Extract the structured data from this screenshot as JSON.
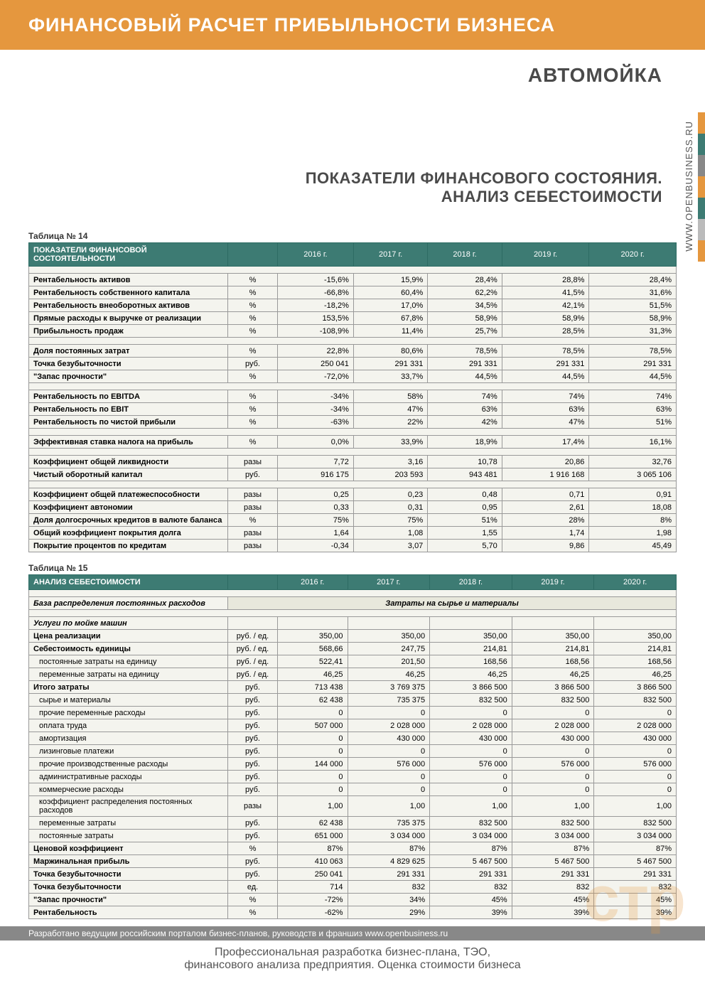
{
  "header": {
    "title": "ФИНАНСОВЫЙ РАСЧЕТ ПРИБЫЛЬНОСТИ БИЗНЕСА",
    "subtitle": "АВТОМОЙКА",
    "section_line1": "ПОКАЗАТЕЛИ ФИНАНСОВОГО СОСТОЯНИЯ.",
    "section_line2": "АНАЛИЗ СЕБЕСТОИМОСТИ",
    "url": "WWW.OPENBUSINESS.RU",
    "side_colors": [
      "#e5973e",
      "#3d7b73",
      "#888",
      "#e5973e",
      "#3d7b73",
      "#bbb",
      "#e5973e"
    ]
  },
  "table14": {
    "label": "Таблица № 14",
    "title": "ПОКАЗАТЕЛИ ФИНАНСОВОЙ СОСТОЯТЕЛЬНОСТИ",
    "years": [
      "2016 г.",
      "2017 г.",
      "2018 г.",
      "2019 г.",
      "2020 г."
    ],
    "groups": [
      [
        {
          "l": "Рентабельность активов",
          "u": "%",
          "v": [
            "-15,6%",
            "15,9%",
            "28,4%",
            "28,8%",
            "28,4%"
          ]
        },
        {
          "l": "Рентабельность собственного капитала",
          "u": "%",
          "v": [
            "-66,8%",
            "60,4%",
            "62,2%",
            "41,5%",
            "31,6%"
          ]
        },
        {
          "l": "Рентабельность внеоборотных активов",
          "u": "%",
          "v": [
            "-18,2%",
            "17,0%",
            "34,5%",
            "42,1%",
            "51,5%"
          ]
        },
        {
          "l": "Прямые расходы к выручке от реализации",
          "u": "%",
          "v": [
            "153,5%",
            "67,8%",
            "58,9%",
            "58,9%",
            "58,9%"
          ]
        },
        {
          "l": "Прибыльность продаж",
          "u": "%",
          "v": [
            "-108,9%",
            "11,4%",
            "25,7%",
            "28,5%",
            "31,3%"
          ]
        }
      ],
      [
        {
          "l": "Доля постоянных  затрат",
          "u": "%",
          "v": [
            "22,8%",
            "80,6%",
            "78,5%",
            "78,5%",
            "78,5%"
          ]
        },
        {
          "l": "Точка безубыточности",
          "u": "руб.",
          "v": [
            "250 041",
            "291 331",
            "291 331",
            "291 331",
            "291 331"
          ]
        },
        {
          "l": "\"Запас прочности\"",
          "u": "%",
          "v": [
            "-72,0%",
            "33,7%",
            "44,5%",
            "44,5%",
            "44,5%"
          ]
        }
      ],
      [
        {
          "l": "Рентабельность по EBITDA",
          "u": "%",
          "v": [
            "-34%",
            "58%",
            "74%",
            "74%",
            "74%"
          ]
        },
        {
          "l": "Рентабельность по EBIT",
          "u": "%",
          "v": [
            "-34%",
            "47%",
            "63%",
            "63%",
            "63%"
          ]
        },
        {
          "l": "Рентабельность по чистой прибыли",
          "u": "%",
          "v": [
            "-63%",
            "22%",
            "42%",
            "47%",
            "51%"
          ]
        }
      ],
      [
        {
          "l": "Эффективная ставка налога на прибыль",
          "u": "%",
          "v": [
            "0,0%",
            "33,9%",
            "18,9%",
            "17,4%",
            "16,1%"
          ]
        }
      ],
      [
        {
          "l": "Коэффициент общей ликвидности",
          "u": "разы",
          "v": [
            "7,72",
            "3,16",
            "10,78",
            "20,86",
            "32,76"
          ]
        },
        {
          "l": "Чистый оборотный капитал",
          "u": "руб.",
          "v": [
            "916 175",
            "203 593",
            "943 481",
            "1 916 168",
            "3 065 106"
          ]
        }
      ],
      [
        {
          "l": "Коэффициент общей платежеспособности",
          "u": "разы",
          "v": [
            "0,25",
            "0,23",
            "0,48",
            "0,71",
            "0,91"
          ]
        },
        {
          "l": "Коэффициент автономии",
          "u": "разы",
          "v": [
            "0,33",
            "0,31",
            "0,95",
            "2,61",
            "18,08"
          ]
        },
        {
          "l": "Доля долгосрочных кредитов в валюте баланса",
          "u": "%",
          "v": [
            "75%",
            "75%",
            "51%",
            "28%",
            "8%"
          ]
        },
        {
          "l": "Общий коэффициент покрытия долга",
          "u": "разы",
          "v": [
            "1,64",
            "1,08",
            "1,55",
            "1,74",
            "1,98"
          ]
        },
        {
          "l": "Покрытие процентов по кредитам",
          "u": "разы",
          "v": [
            "-0,34",
            "3,07",
            "5,70",
            "9,86",
            "45,49"
          ]
        }
      ]
    ]
  },
  "table15": {
    "label": "Таблица № 15",
    "title": "АНАЛИЗ СЕБЕСТОИМОСТИ",
    "years": [
      "2016 г.",
      "2017 г.",
      "2018 г.",
      "2019 г.",
      "2020 г."
    ],
    "base_label": "База распределения постоянных расходов",
    "base_value": "Затраты на сырье и материалы",
    "section": "Услуги по мойке машин",
    "rows": [
      {
        "l": "Цена реализации",
        "u": "руб. / ед.",
        "v": [
          "350,00",
          "350,00",
          "350,00",
          "350,00",
          "350,00"
        ],
        "cls": "label"
      },
      {
        "l": "Себестоимость единицы",
        "u": "руб. / ед.",
        "v": [
          "568,66",
          "247,75",
          "214,81",
          "214,81",
          "214,81"
        ],
        "cls": "label"
      },
      {
        "l": "постоянные затраты на единицу",
        "u": "руб. / ед.",
        "v": [
          "522,41",
          "201,50",
          "168,56",
          "168,56",
          "168,56"
        ],
        "cls": "label-sub"
      },
      {
        "l": "переменные затраты на единицу",
        "u": "руб. / ед.",
        "v": [
          "46,25",
          "46,25",
          "46,25",
          "46,25",
          "46,25"
        ],
        "cls": "label-sub"
      },
      {
        "l": "Итого затраты",
        "u": "руб.",
        "v": [
          "713 438",
          "3 769 375",
          "3 866 500",
          "3 866 500",
          "3 866 500"
        ],
        "cls": "label"
      },
      {
        "l": "сырье и материалы",
        "u": "руб.",
        "v": [
          "62 438",
          "735 375",
          "832 500",
          "832 500",
          "832 500"
        ],
        "cls": "label-sub"
      },
      {
        "l": "прочие переменные расходы",
        "u": "руб.",
        "v": [
          "0",
          "0",
          "0",
          "0",
          "0"
        ],
        "cls": "label-sub"
      },
      {
        "l": "оплата труда",
        "u": "руб.",
        "v": [
          "507 000",
          "2 028 000",
          "2 028 000",
          "2 028 000",
          "2 028 000"
        ],
        "cls": "label-sub"
      },
      {
        "l": "амортизация",
        "u": "руб.",
        "v": [
          "0",
          "430 000",
          "430 000",
          "430 000",
          "430 000"
        ],
        "cls": "label-sub"
      },
      {
        "l": "лизинговые платежи",
        "u": "руб.",
        "v": [
          "0",
          "0",
          "0",
          "0",
          "0"
        ],
        "cls": "label-sub"
      },
      {
        "l": "прочие производственные расходы",
        "u": "руб.",
        "v": [
          "144 000",
          "576 000",
          "576 000",
          "576 000",
          "576 000"
        ],
        "cls": "label-sub"
      },
      {
        "l": "административные расходы",
        "u": "руб.",
        "v": [
          "0",
          "0",
          "0",
          "0",
          "0"
        ],
        "cls": "label-sub"
      },
      {
        "l": "коммерческие расходы",
        "u": "руб.",
        "v": [
          "0",
          "0",
          "0",
          "0",
          "0"
        ],
        "cls": "label-sub"
      },
      {
        "l": "коэффициент распределения постоянных расходов",
        "u": "разы",
        "v": [
          "1,00",
          "1,00",
          "1,00",
          "1,00",
          "1,00"
        ],
        "cls": "label-sub"
      },
      {
        "l": "переменные затраты",
        "u": "руб.",
        "v": [
          "62 438",
          "735 375",
          "832 500",
          "832 500",
          "832 500"
        ],
        "cls": "label-sub"
      },
      {
        "l": "постоянные затраты",
        "u": "руб.",
        "v": [
          "651 000",
          "3 034 000",
          "3 034 000",
          "3 034 000",
          "3 034 000"
        ],
        "cls": "label-sub"
      },
      {
        "l": "Ценовой коэффициент",
        "u": "%",
        "v": [
          "87%",
          "87%",
          "87%",
          "87%",
          "87%"
        ],
        "cls": "label"
      },
      {
        "l": "Маржинальная прибыль",
        "u": "руб.",
        "v": [
          "410 063",
          "4 829 625",
          "5 467 500",
          "5 467 500",
          "5 467 500"
        ],
        "cls": "label"
      },
      {
        "l": "Точка безубыточности",
        "u": "руб.",
        "v": [
          "250 041",
          "291 331",
          "291 331",
          "291 331",
          "291 331"
        ],
        "cls": "label"
      },
      {
        "l": "Точка безубыточности",
        "u": "ед.",
        "v": [
          "714",
          "832",
          "832",
          "832",
          "832"
        ],
        "cls": "label"
      },
      {
        "l": "\"Запас прочности\"",
        "u": "%",
        "v": [
          "-72%",
          "34%",
          "45%",
          "45%",
          "45%"
        ],
        "cls": "label"
      },
      {
        "l": "Рентабельность",
        "u": "%",
        "v": [
          "-62%",
          "29%",
          "39%",
          "39%",
          "39%"
        ],
        "cls": "label"
      }
    ]
  },
  "watermark": "стр",
  "footer": {
    "bar": "Разработано ведущим российским порталом бизнес-планов, руководств и франшиз www.openbusiness.ru",
    "line1": "Профессиональная разработка бизнес-плана, ТЭО,",
    "line2": "финансового анализа предприятия. Оценка стоимости бизнеса"
  }
}
